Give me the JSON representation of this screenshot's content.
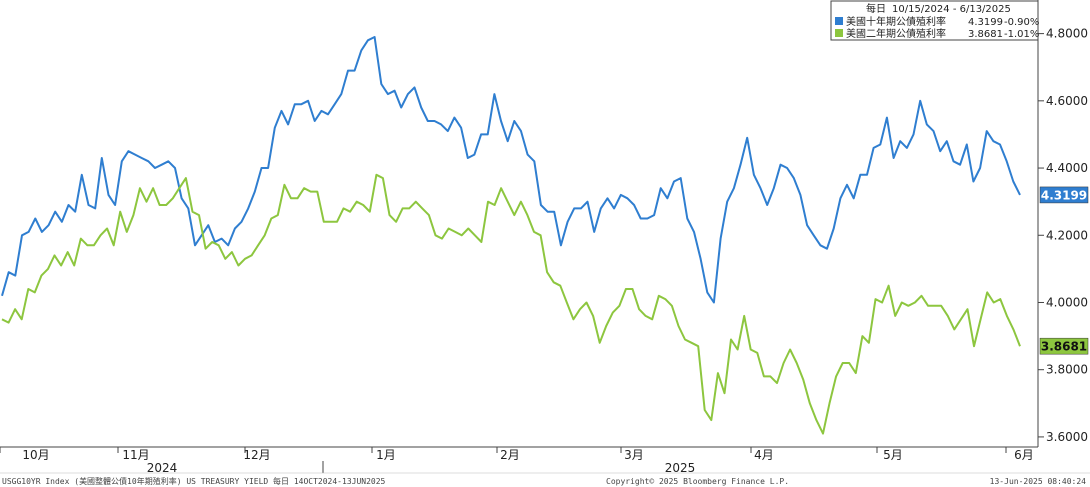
{
  "chart_data": {
    "type": "line",
    "date_range": "10/15/2024 - 6/13/2025",
    "legend_header": "每日",
    "ylim": [
      3.57,
      4.9
    ],
    "y_ticks": [
      "4.8000",
      "4.6000",
      "4.4000",
      "4.2000",
      "4.0000",
      "3.8000",
      "3.6000"
    ],
    "x_ticks": [
      "10月",
      "11月",
      "12月",
      "1月",
      "2月",
      "3月",
      "4月",
      "5月",
      "6月"
    ],
    "years": [
      "2024",
      "2025"
    ],
    "series": [
      {
        "name": "美國十年期公債殖利率",
        "last": "4.3199",
        "change": "-0.90%",
        "color": "#2f7ed0",
        "values": [
          4.02,
          4.09,
          4.08,
          4.2,
          4.21,
          4.25,
          4.21,
          4.23,
          4.27,
          4.24,
          4.29,
          4.27,
          4.38,
          4.29,
          4.28,
          4.43,
          4.32,
          4.29,
          4.42,
          4.45,
          4.44,
          4.43,
          4.42,
          4.4,
          4.41,
          4.42,
          4.4,
          4.31,
          4.28,
          4.17,
          4.2,
          4.23,
          4.18,
          4.19,
          4.17,
          4.22,
          4.24,
          4.28,
          4.33,
          4.4,
          4.4,
          4.52,
          4.57,
          4.53,
          4.59,
          4.59,
          4.6,
          4.54,
          4.57,
          4.56,
          4.59,
          4.62,
          4.69,
          4.69,
          4.75,
          4.78,
          4.79,
          4.65,
          4.62,
          4.63,
          4.58,
          4.62,
          4.64,
          4.58,
          4.54,
          4.54,
          4.53,
          4.51,
          4.55,
          4.52,
          4.43,
          4.44,
          4.5,
          4.5,
          4.62,
          4.54,
          4.48,
          4.54,
          4.51,
          4.44,
          4.42,
          4.29,
          4.27,
          4.27,
          4.17,
          4.24,
          4.28,
          4.28,
          4.3,
          4.21,
          4.28,
          4.31,
          4.28,
          4.32,
          4.31,
          4.29,
          4.25,
          4.25,
          4.26,
          4.34,
          4.31,
          4.36,
          4.37,
          4.25,
          4.21,
          4.13,
          4.03,
          4.0,
          4.19,
          4.3,
          4.34,
          4.41,
          4.49,
          4.38,
          4.34,
          4.29,
          4.34,
          4.41,
          4.4,
          4.37,
          4.32,
          4.23,
          4.2,
          4.17,
          4.16,
          4.22,
          4.31,
          4.35,
          4.31,
          4.38,
          4.38,
          4.46,
          4.47,
          4.55,
          4.43,
          4.48,
          4.46,
          4.5,
          4.6,
          4.53,
          4.51,
          4.45,
          4.48,
          4.42,
          4.41,
          4.47,
          4.36,
          4.4,
          4.51,
          4.48,
          4.47,
          4.42,
          4.36,
          4.32
        ]
      },
      {
        "name": "美國二年期公債殖利率",
        "last": "3.8681",
        "change": "-1.01%",
        "color": "#8dc63f",
        "values": [
          3.95,
          3.94,
          3.98,
          3.95,
          4.04,
          4.03,
          4.08,
          4.1,
          4.14,
          4.11,
          4.15,
          4.11,
          4.19,
          4.17,
          4.17,
          4.2,
          4.22,
          4.17,
          4.27,
          4.21,
          4.26,
          4.34,
          4.3,
          4.34,
          4.29,
          4.29,
          4.31,
          4.34,
          4.37,
          4.27,
          4.26,
          4.16,
          4.18,
          4.17,
          4.13,
          4.15,
          4.11,
          4.13,
          4.14,
          4.17,
          4.2,
          4.25,
          4.26,
          4.35,
          4.31,
          4.31,
          4.34,
          4.33,
          4.33,
          4.24,
          4.24,
          4.24,
          4.28,
          4.27,
          4.3,
          4.29,
          4.27,
          4.38,
          4.37,
          4.26,
          4.24,
          4.28,
          4.28,
          4.3,
          4.28,
          4.26,
          4.2,
          4.19,
          4.22,
          4.21,
          4.2,
          4.22,
          4.2,
          4.18,
          4.3,
          4.29,
          4.34,
          4.3,
          4.26,
          4.3,
          4.26,
          4.21,
          4.2,
          4.09,
          4.06,
          4.05,
          4.0,
          3.95,
          3.98,
          4.0,
          3.96,
          3.88,
          3.93,
          3.97,
          3.99,
          4.04,
          4.04,
          3.98,
          3.96,
          3.95,
          4.02,
          4.01,
          3.99,
          3.93,
          3.89,
          3.88,
          3.87,
          3.68,
          3.65,
          3.79,
          3.73,
          3.89,
          3.86,
          3.96,
          3.86,
          3.85,
          3.78,
          3.78,
          3.76,
          3.82,
          3.86,
          3.82,
          3.77,
          3.7,
          3.65,
          3.61,
          3.7,
          3.78,
          3.82,
          3.82,
          3.79,
          3.9,
          3.88,
          4.01,
          4.0,
          4.05,
          3.96,
          4.0,
          3.99,
          4.0,
          4.02,
          3.99,
          3.99,
          3.99,
          3.96,
          3.92,
          3.95,
          3.98,
          3.87,
          3.95,
          4.03,
          4.0,
          4.01,
          3.96,
          3.92,
          3.87
        ]
      }
    ]
  },
  "footer": {
    "left": "USGG10YR Index (美國整體公債10年期殖利率) US TREASURY YIELD  每日 14OCT2024-13JUN2025",
    "center": "Copyright© 2025 Bloomberg Finance L.P.",
    "right": "13-Jun-2025 08:40:24"
  }
}
